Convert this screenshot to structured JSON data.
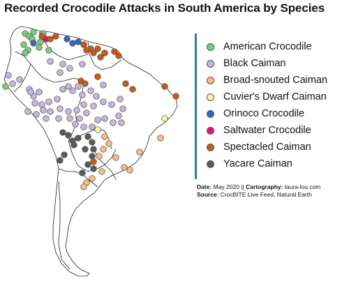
{
  "title": "Recorded Crocodile Attacks in South America by Species",
  "colors": {
    "accent": "#2d7aa6"
  },
  "legend": [
    {
      "key": "american",
      "label": "American Crocodile",
      "color": "#7ccc7c"
    },
    {
      "key": "black",
      "label": "Black Caiman",
      "color": "#c6b8dc"
    },
    {
      "key": "broad",
      "label": "Broad-snouted Caiman",
      "color": "#f5be82"
    },
    {
      "key": "cuvier",
      "label": "Cuvier's Dwarf Caiman",
      "color": "#fcf6a6"
    },
    {
      "key": "orinoco",
      "label": "Orinoco Crocodile",
      "color": "#2f6cb8"
    },
    {
      "key": "saltwater",
      "label": "Saltwater Crocodile",
      "color": "#e0166e"
    },
    {
      "key": "spectacled",
      "label": "Spectacled Caiman",
      "color": "#c85a18"
    },
    {
      "key": "yacare",
      "label": "Yacare Caiman",
      "color": "#5a5a5a"
    }
  ],
  "credits": {
    "date_label": "Date:",
    "date_value": "May 2020 ||",
    "carto_label": "Cartography:",
    "carto_value": "laura-lou.com",
    "source_label": "Source",
    "source_value": ": CrocBITE Live Feed, Natural Earth"
  }
}
